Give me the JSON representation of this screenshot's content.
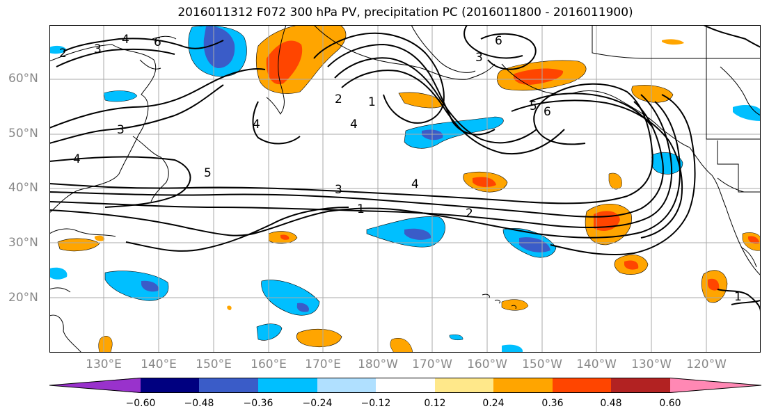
{
  "title": "2016011312 F072 300 hPa PV, precipitation PC (2016011800 - 2016011900)",
  "map": {
    "lat_labels": [
      "60°N",
      "50°N",
      "40°N",
      "30°N",
      "20°N"
    ],
    "lon_labels": [
      "130°E",
      "140°E",
      "150°E",
      "160°E",
      "170°E",
      "180°W",
      "170°W",
      "160°W",
      "150°W",
      "140°W",
      "130°W",
      "120°W"
    ],
    "contour_labels": [
      "1",
      "2",
      "3",
      "4",
      "5",
      "6"
    ],
    "grid": true
  },
  "colorbar": {
    "colors": [
      "#9932cc",
      "#000080",
      "#3a5cc8",
      "#00bfff",
      "#b0e0ff",
      "#ffffff",
      "#ffe88a",
      "#ffa500",
      "#ff4500",
      "#b22222",
      "#ff88b4"
    ],
    "tick_labels": [
      "−0.60",
      "−0.48",
      "−0.36",
      "−0.24",
      "−0.12",
      "0.12",
      "0.24",
      "0.36",
      "0.48",
      "0.60"
    ]
  }
}
